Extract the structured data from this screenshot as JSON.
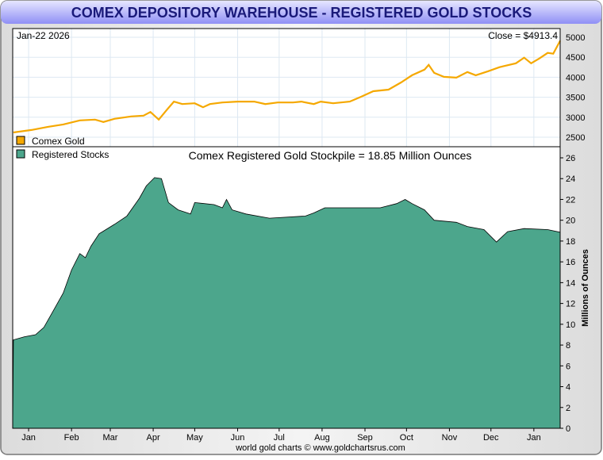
{
  "chart_data": [
    {
      "type": "line",
      "title": "COMEX DEPOSITORY WAREHOUSE - REGISTERED GOLD STOCKS",
      "date_label": "Jan-22  2026",
      "close_label": "Close = $4913.4",
      "legend": "Comex Gold",
      "color": "#f5a800",
      "ylim": [
        2250,
        5250
      ],
      "yticks": [
        2500,
        3000,
        3500,
        4000,
        4500,
        5000
      ],
      "x_unit": "days since Jan 1 2025",
      "xlim": [
        -11.5,
        384
      ],
      "x": [
        -11,
        2,
        14,
        25,
        37,
        48,
        54,
        62,
        74,
        83,
        88,
        94,
        100,
        105,
        111,
        120,
        126,
        131,
        140,
        151,
        163,
        171,
        180,
        191,
        197,
        206,
        211,
        220,
        232,
        240,
        249,
        260,
        269,
        277,
        286,
        289,
        293,
        300,
        309,
        317,
        323,
        332,
        340,
        352,
        358,
        363,
        369,
        375,
        379,
        384
      ],
      "values": [
        2620,
        2680,
        2760,
        2820,
        2920,
        2940,
        2880,
        2960,
        3020,
        3040,
        3130,
        2940,
        3190,
        3390,
        3330,
        3350,
        3250,
        3330,
        3370,
        3390,
        3390,
        3330,
        3370,
        3370,
        3390,
        3330,
        3390,
        3350,
        3390,
        3510,
        3650,
        3690,
        3870,
        4050,
        4190,
        4310,
        4110,
        4010,
        3990,
        4130,
        4050,
        4150,
        4250,
        4350,
        4490,
        4350,
        4470,
        4610,
        4590,
        4913.4
      ]
    },
    {
      "type": "area",
      "title": "Comex Registered Gold Stockpile = 18.85 Million Ounces",
      "legend": "Registered Stocks",
      "color": "#4ca68c",
      "ylabel": "Millions of Ounces",
      "ylim": [
        0,
        26.5
      ],
      "yticks": [
        0,
        2,
        4,
        6,
        8,
        10,
        12,
        14,
        16,
        18,
        20,
        22,
        24,
        26
      ],
      "x": [
        -11,
        -3,
        5,
        11,
        17,
        25,
        31,
        37,
        41,
        45,
        51,
        62,
        71,
        80,
        85,
        91,
        96,
        101,
        108,
        117,
        120,
        134,
        140,
        143,
        147,
        157,
        174,
        200,
        206,
        214,
        232,
        254,
        266,
        272,
        277,
        286,
        293,
        309,
        317,
        329,
        338,
        346,
        358,
        375,
        384
      ],
      "values": [
        8.5,
        8.8,
        9.0,
        9.7,
        11.1,
        13.0,
        15.2,
        16.8,
        16.4,
        17.5,
        18.7,
        19.6,
        20.4,
        22.1,
        23.3,
        24.1,
        24.0,
        21.7,
        21.0,
        20.6,
        21.7,
        21.5,
        21.2,
        22.0,
        21.0,
        20.6,
        20.2,
        20.4,
        20.7,
        21.2,
        21.2,
        21.2,
        21.6,
        22.0,
        21.6,
        21.0,
        20.0,
        19.8,
        19.4,
        19.1,
        17.9,
        18.9,
        19.2,
        19.1,
        18.85
      ]
    }
  ],
  "months": [
    {
      "label": "Jan",
      "day": 0
    },
    {
      "label": "Feb",
      "day": 31
    },
    {
      "label": "Mar",
      "day": 59
    },
    {
      "label": "Apr",
      "day": 90
    },
    {
      "label": "May",
      "day": 120
    },
    {
      "label": "Jun",
      "day": 151
    },
    {
      "label": "Jul",
      "day": 181
    },
    {
      "label": "Aug",
      "day": 212
    },
    {
      "label": "Sep",
      "day": 243
    },
    {
      "label": "Oct",
      "day": 273
    },
    {
      "label": "Nov",
      "day": 304
    },
    {
      "label": "Dec",
      "day": 334
    },
    {
      "label": "Jan",
      "day": 365
    }
  ],
  "footer": "world gold charts © www.goldchartsrus.com"
}
